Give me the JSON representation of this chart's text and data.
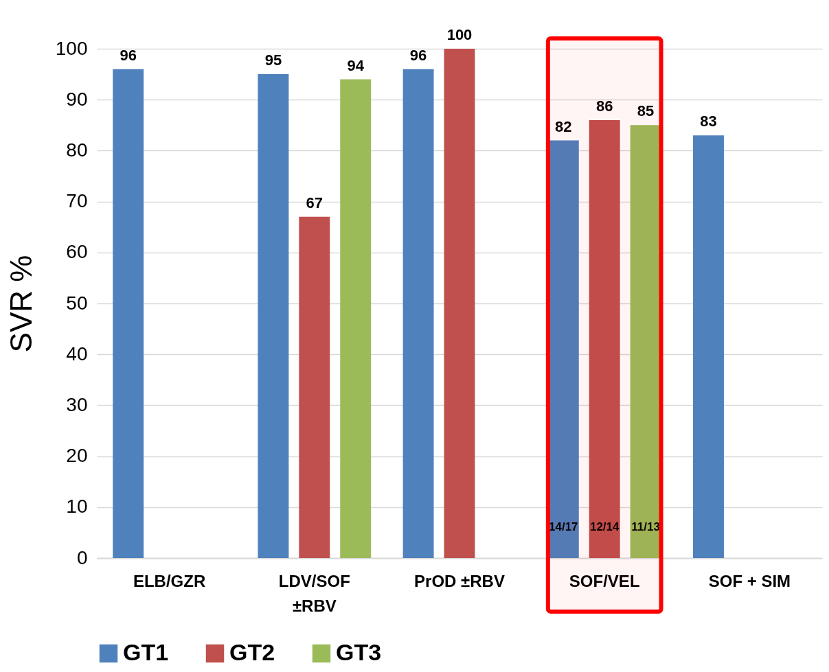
{
  "chart_data": {
    "type": "bar",
    "ylabel": "SVR %",
    "categories": [
      "ELB/GZR",
      "LDV/SOF ±RBV",
      "PrOD ±RBV",
      "SOF/VEL",
      "SOF + SIM"
    ],
    "series": [
      {
        "name": "GT1",
        "color": "#4f81bd",
        "values": [
          96,
          95,
          96,
          82,
          83
        ]
      },
      {
        "name": "GT2",
        "color": "#c0504d",
        "values": [
          null,
          67,
          100,
          86,
          null
        ]
      },
      {
        "name": "GT3",
        "color": "#9bbb59",
        "values": [
          null,
          94,
          null,
          85,
          null
        ]
      }
    ],
    "ylim": [
      0,
      100
    ],
    "yticks": [
      0,
      10,
      20,
      30,
      40,
      50,
      60,
      70,
      80,
      90,
      100
    ],
    "grid": "y",
    "legend": "bottom",
    "data_labels": true,
    "annotations": [
      "14/17",
      "12/14",
      "11/13"
    ],
    "bands": [
      {
        "axis": "x",
        "from": "SOF/VEL",
        "to": "SOF/VEL",
        "color": "#ff0000"
      }
    ]
  }
}
